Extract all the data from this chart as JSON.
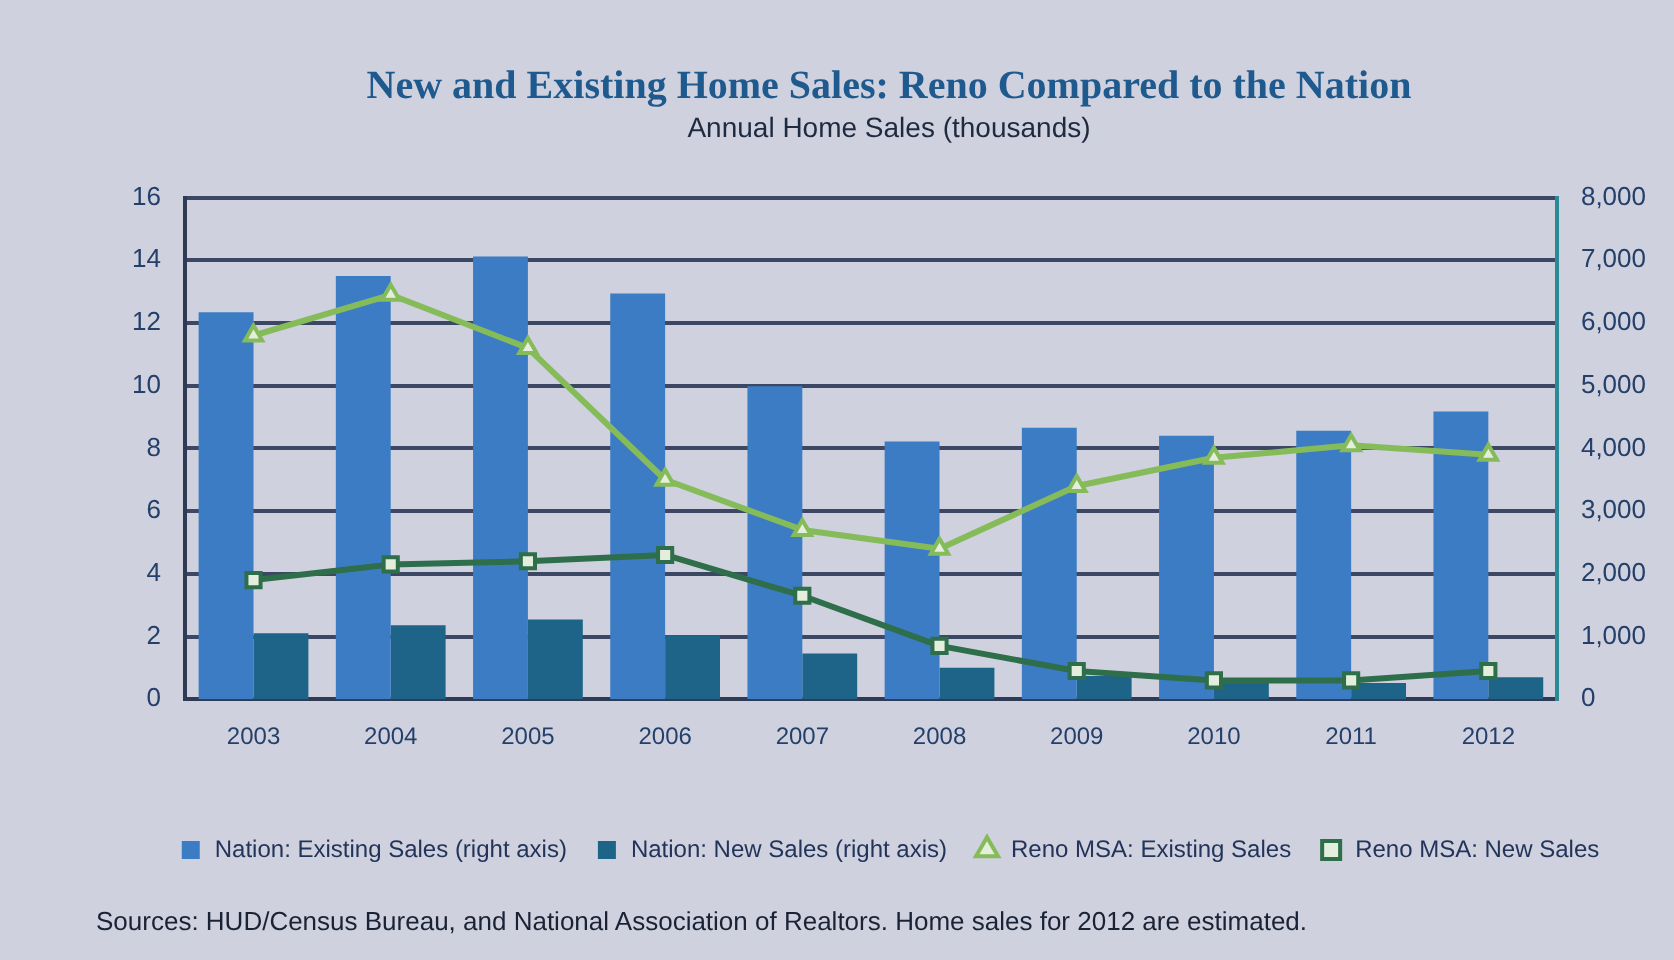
{
  "chart_data": {
    "type": "bar",
    "title": "New and Existing Home Sales: Reno Compared to the Nation",
    "subtitle": "Annual Home Sales (thousands)",
    "categories": [
      "2003",
      "2004",
      "2005",
      "2006",
      "2007",
      "2008",
      "2009",
      "2010",
      "2011",
      "2012"
    ],
    "series": [
      {
        "name": "Nation: Existing Sales (right axis)",
        "axis": "y2",
        "color": "#3c7cc4",
        "values": [
          6170,
          6750,
          7060,
          6470,
          4990,
          4110,
          4330,
          4200,
          4280,
          4590
        ]
      },
      {
        "name": "Nation: New Sales (right axis)",
        "axis": "y2",
        "color": "#1d6488",
        "values": [
          1050,
          1180,
          1270,
          1020,
          730,
          500,
          370,
          260,
          260,
          350
        ]
      },
      {
        "name": "Reno MSA: Existing Sales",
        "type": "line",
        "color": "#86bb5a",
        "marker": "triangle",
        "values": [
          11.6,
          12.9,
          11.2,
          7.0,
          5.4,
          4.8,
          6.8,
          7.7,
          8.1,
          7.8
        ]
      },
      {
        "name": "Reno MSA: New Sales",
        "type": "line",
        "color": "#2e6e4a",
        "marker": "square",
        "values": [
          3.8,
          4.3,
          4.4,
          4.6,
          3.3,
          1.7,
          0.9,
          0.6,
          0.6,
          0.9
        ]
      }
    ],
    "ylim": [
      0,
      16
    ],
    "yticks": [
      0,
      2,
      4,
      6,
      8,
      10,
      12,
      14,
      16
    ],
    "y2lim": [
      0,
      8000
    ],
    "y2ticks": [
      0,
      {
        "value": 1000,
        "label": "1,000"
      },
      {
        "value": 2000,
        "label": "2,000"
      },
      {
        "value": 3000,
        "label": "3,000"
      },
      {
        "value": 4000,
        "label": "4,000"
      },
      {
        "value": 5000,
        "label": "5,000"
      },
      {
        "value": 6000,
        "label": "6,000"
      },
      {
        "value": 7000,
        "label": "7,000"
      },
      {
        "value": 8000,
        "label": "8,000"
      }
    ],
    "grid": "y",
    "legend": "bottom",
    "annotations": [
      "Sources: HUD/Census Bureau, and National Association of Realtors. Home sales for 2012 are estimated."
    ]
  }
}
